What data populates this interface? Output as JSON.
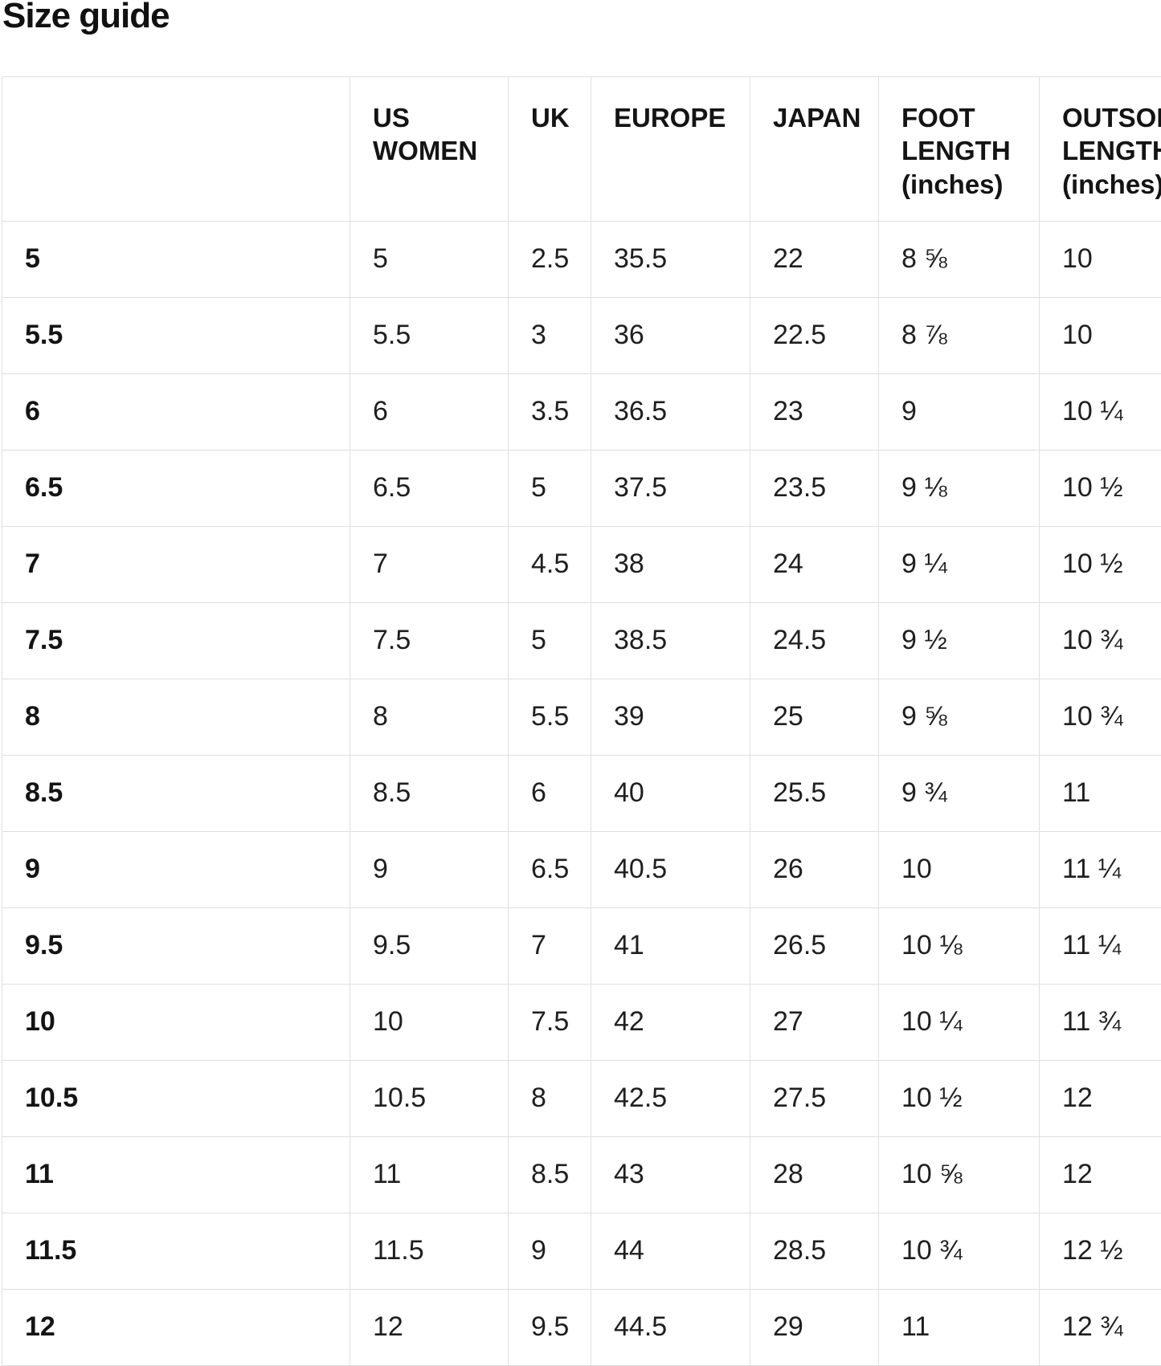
{
  "title": "Size guide",
  "table": {
    "columns": [
      "",
      "US WOMEN",
      "UK",
      "EUROPE",
      "JAPAN",
      "FOOT LENGTH (inches)",
      "OUTSOLE LENGTH (inches)"
    ],
    "rows": [
      {
        "label": "5",
        "us_women": "5",
        "uk": "2.5",
        "europe": "35.5",
        "japan": "22",
        "foot_length": "8 ⅝",
        "outsole_length": "10"
      },
      {
        "label": "5.5",
        "us_women": "5.5",
        "uk": "3",
        "europe": "36",
        "japan": "22.5",
        "foot_length": "8 ⅞",
        "outsole_length": "10"
      },
      {
        "label": "6",
        "us_women": "6",
        "uk": "3.5",
        "europe": "36.5",
        "japan": "23",
        "foot_length": "9",
        "outsole_length": "10 ¼"
      },
      {
        "label": "6.5",
        "us_women": "6.5",
        "uk": "5",
        "europe": "37.5",
        "japan": "23.5",
        "foot_length": "9 ⅛",
        "outsole_length": "10 ½"
      },
      {
        "label": "7",
        "us_women": "7",
        "uk": "4.5",
        "europe": "38",
        "japan": "24",
        "foot_length": "9 ¼",
        "outsole_length": "10 ½"
      },
      {
        "label": "7.5",
        "us_women": "7.5",
        "uk": "5",
        "europe": "38.5",
        "japan": "24.5",
        "foot_length": "9 ½",
        "outsole_length": "10 ¾"
      },
      {
        "label": "8",
        "us_women": "8",
        "uk": "5.5",
        "europe": "39",
        "japan": "25",
        "foot_length": "9 ⅝",
        "outsole_length": "10 ¾"
      },
      {
        "label": "8.5",
        "us_women": "8.5",
        "uk": "6",
        "europe": "40",
        "japan": "25.5",
        "foot_length": "9 ¾",
        "outsole_length": "11"
      },
      {
        "label": "9",
        "us_women": "9",
        "uk": "6.5",
        "europe": "40.5",
        "japan": "26",
        "foot_length": "10",
        "outsole_length": "11 ¼"
      },
      {
        "label": "9.5",
        "us_women": "9.5",
        "uk": "7",
        "europe": "41",
        "japan": "26.5",
        "foot_length": "10 ⅛",
        "outsole_length": "11 ¼"
      },
      {
        "label": "10",
        "us_women": "10",
        "uk": "7.5",
        "europe": "42",
        "japan": "27",
        "foot_length": "10 ¼",
        "outsole_length": "11 ¾"
      },
      {
        "label": "10.5",
        "us_women": "10.5",
        "uk": "8",
        "europe": "42.5",
        "japan": "27.5",
        "foot_length": "10 ½",
        "outsole_length": "12"
      },
      {
        "label": "11",
        "us_women": "11",
        "uk": "8.5",
        "europe": "43",
        "japan": "28",
        "foot_length": "10 ⅝",
        "outsole_length": "12"
      },
      {
        "label": "11.5",
        "us_women": "11.5",
        "uk": "9",
        "europe": "44",
        "japan": "28.5",
        "foot_length": "10 ¾",
        "outsole_length": "12 ½"
      },
      {
        "label": "12",
        "us_women": "12",
        "uk": "9.5",
        "europe": "44.5",
        "japan": "29",
        "foot_length": "11",
        "outsole_length": "12 ¾"
      }
    ]
  }
}
